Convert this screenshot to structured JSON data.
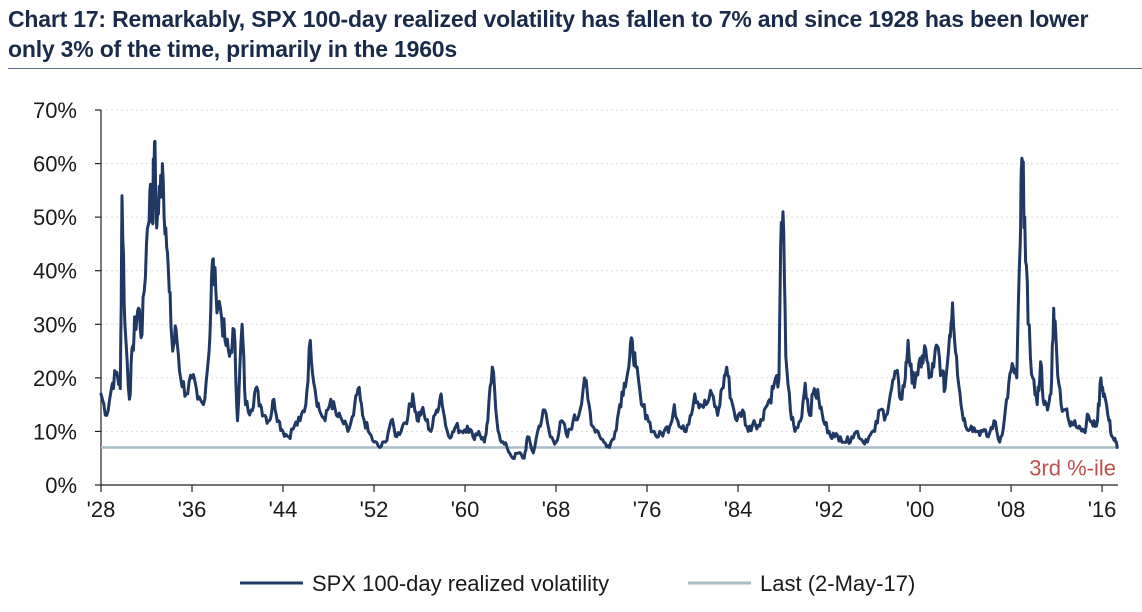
{
  "chart_data": {
    "type": "line",
    "title": "Chart 17: Remarkably, SPX 100-day realized volatility has fallen to 7% and since 1928 has been lower only 3% of the time, primarily in the 1960s",
    "xlabel": "",
    "ylabel": "",
    "xlim": [
      1928,
      2017.4
    ],
    "ylim": [
      0,
      0.7
    ],
    "x_ticks": [
      1928,
      1936,
      1944,
      1952,
      1960,
      1968,
      1976,
      1984,
      1992,
      2000,
      2008,
      2016
    ],
    "x_tick_labels": [
      "'28",
      "'36",
      "'44",
      "'52",
      "'60",
      "'68",
      "'76",
      "'84",
      "'92",
      "'00",
      "'08",
      "'16"
    ],
    "y_ticks": [
      0,
      0.1,
      0.2,
      0.3,
      0.4,
      0.5,
      0.6,
      0.7
    ],
    "y_tick_labels": [
      "0%",
      "10%",
      "20%",
      "30%",
      "40%",
      "50%",
      "60%",
      "70%"
    ],
    "grid": "horizontal dotted",
    "legend_position": "bottom",
    "series": [
      {
        "name": "SPX 100-day realized volatility",
        "color": "#1f3864",
        "points": [
          [
            1928.0,
            0.17
          ],
          [
            1928.5,
            0.13
          ],
          [
            1929.0,
            0.19
          ],
          [
            1929.4,
            0.21
          ],
          [
            1929.7,
            0.18
          ],
          [
            1929.85,
            0.54
          ],
          [
            1930.1,
            0.3
          ],
          [
            1930.5,
            0.16
          ],
          [
            1930.8,
            0.26
          ],
          [
            1931.0,
            0.3
          ],
          [
            1931.3,
            0.33
          ],
          [
            1931.6,
            0.28
          ],
          [
            1932.0,
            0.45
          ],
          [
            1932.3,
            0.55
          ],
          [
            1932.5,
            0.49
          ],
          [
            1932.7,
            0.64
          ],
          [
            1932.9,
            0.48
          ],
          [
            1933.2,
            0.55
          ],
          [
            1933.4,
            0.6
          ],
          [
            1933.7,
            0.48
          ],
          [
            1934.0,
            0.36
          ],
          [
            1934.3,
            0.25
          ],
          [
            1934.6,
            0.29
          ],
          [
            1935.0,
            0.2
          ],
          [
            1935.5,
            0.17
          ],
          [
            1936.0,
            0.2
          ],
          [
            1936.5,
            0.16
          ],
          [
            1937.0,
            0.15
          ],
          [
            1937.5,
            0.25
          ],
          [
            1937.8,
            0.42
          ],
          [
            1938.1,
            0.36
          ],
          [
            1938.5,
            0.33
          ],
          [
            1938.9,
            0.27
          ],
          [
            1939.3,
            0.24
          ],
          [
            1939.7,
            0.29
          ],
          [
            1940.0,
            0.12
          ],
          [
            1940.4,
            0.3
          ],
          [
            1940.7,
            0.15
          ],
          [
            1941.2,
            0.14
          ],
          [
            1941.6,
            0.18
          ],
          [
            1942.0,
            0.15
          ],
          [
            1942.4,
            0.13
          ],
          [
            1942.8,
            0.12
          ],
          [
            1943.2,
            0.16
          ],
          [
            1943.6,
            0.12
          ],
          [
            1944.0,
            0.1
          ],
          [
            1944.5,
            0.09
          ],
          [
            1945.0,
            0.11
          ],
          [
            1945.5,
            0.12
          ],
          [
            1946.0,
            0.15
          ],
          [
            1946.4,
            0.27
          ],
          [
            1946.8,
            0.18
          ],
          [
            1947.2,
            0.14
          ],
          [
            1947.7,
            0.12
          ],
          [
            1948.2,
            0.16
          ],
          [
            1948.7,
            0.13
          ],
          [
            1949.2,
            0.12
          ],
          [
            1949.7,
            0.1
          ],
          [
            1950.2,
            0.13
          ],
          [
            1950.6,
            0.18
          ],
          [
            1951.0,
            0.13
          ],
          [
            1951.5,
            0.1
          ],
          [
            1952.0,
            0.08
          ],
          [
            1952.5,
            0.07
          ],
          [
            1953.0,
            0.08
          ],
          [
            1953.5,
            0.12
          ],
          [
            1954.0,
            0.09
          ],
          [
            1954.5,
            0.11
          ],
          [
            1955.0,
            0.13
          ],
          [
            1955.4,
            0.17
          ],
          [
            1955.8,
            0.12
          ],
          [
            1956.2,
            0.14
          ],
          [
            1956.6,
            0.12
          ],
          [
            1957.0,
            0.1
          ],
          [
            1957.5,
            0.14
          ],
          [
            1957.9,
            0.17
          ],
          [
            1958.3,
            0.11
          ],
          [
            1958.8,
            0.09
          ],
          [
            1959.2,
            0.11
          ],
          [
            1959.7,
            0.1
          ],
          [
            1960.2,
            0.11
          ],
          [
            1960.7,
            0.09
          ],
          [
            1961.2,
            0.1
          ],
          [
            1961.7,
            0.08
          ],
          [
            1962.0,
            0.12
          ],
          [
            1962.4,
            0.22
          ],
          [
            1962.8,
            0.12
          ],
          [
            1963.2,
            0.08
          ],
          [
            1963.7,
            0.07
          ],
          [
            1964.2,
            0.05
          ],
          [
            1964.7,
            0.06
          ],
          [
            1965.2,
            0.05
          ],
          [
            1965.5,
            0.09
          ],
          [
            1966.0,
            0.06
          ],
          [
            1966.5,
            0.11
          ],
          [
            1967.0,
            0.14
          ],
          [
            1967.5,
            0.09
          ],
          [
            1968.0,
            0.08
          ],
          [
            1968.5,
            0.12
          ],
          [
            1969.0,
            0.09
          ],
          [
            1969.5,
            0.12
          ],
          [
            1970.0,
            0.13
          ],
          [
            1970.5,
            0.2
          ],
          [
            1970.8,
            0.16
          ],
          [
            1971.2,
            0.11
          ],
          [
            1971.7,
            0.1
          ],
          [
            1972.2,
            0.08
          ],
          [
            1972.7,
            0.07
          ],
          [
            1973.2,
            0.1
          ],
          [
            1973.6,
            0.15
          ],
          [
            1974.0,
            0.19
          ],
          [
            1974.4,
            0.22
          ],
          [
            1974.7,
            0.27
          ],
          [
            1975.0,
            0.22
          ],
          [
            1975.5,
            0.15
          ],
          [
            1976.0,
            0.13
          ],
          [
            1976.5,
            0.1
          ],
          [
            1977.0,
            0.09
          ],
          [
            1977.5,
            0.1
          ],
          [
            1978.0,
            0.11
          ],
          [
            1978.4,
            0.15
          ],
          [
            1978.8,
            0.11
          ],
          [
            1979.3,
            0.1
          ],
          [
            1979.8,
            0.13
          ],
          [
            1980.2,
            0.17
          ],
          [
            1980.7,
            0.15
          ],
          [
            1981.2,
            0.15
          ],
          [
            1981.7,
            0.17
          ],
          [
            1982.2,
            0.13
          ],
          [
            1982.6,
            0.18
          ],
          [
            1983.0,
            0.22
          ],
          [
            1983.4,
            0.16
          ],
          [
            1983.9,
            0.12
          ],
          [
            1984.4,
            0.14
          ],
          [
            1984.9,
            0.1
          ],
          [
            1985.4,
            0.12
          ],
          [
            1985.9,
            0.11
          ],
          [
            1986.3,
            0.14
          ],
          [
            1986.8,
            0.16
          ],
          [
            1987.2,
            0.19
          ],
          [
            1987.6,
            0.2
          ],
          [
            1987.8,
            0.49
          ],
          [
            1987.95,
            0.51
          ],
          [
            1988.2,
            0.24
          ],
          [
            1988.6,
            0.14
          ],
          [
            1989.0,
            0.1
          ],
          [
            1989.5,
            0.12
          ],
          [
            1989.9,
            0.19
          ],
          [
            1990.3,
            0.13
          ],
          [
            1990.7,
            0.18
          ],
          [
            1991.1,
            0.16
          ],
          [
            1991.5,
            0.12
          ],
          [
            1992.0,
            0.1
          ],
          [
            1992.5,
            0.09
          ],
          [
            1993.0,
            0.09
          ],
          [
            1993.5,
            0.08
          ],
          [
            1994.0,
            0.09
          ],
          [
            1994.5,
            0.1
          ],
          [
            1995.0,
            0.08
          ],
          [
            1995.5,
            0.09
          ],
          [
            1996.0,
            0.1
          ],
          [
            1996.5,
            0.14
          ],
          [
            1997.0,
            0.13
          ],
          [
            1997.5,
            0.18
          ],
          [
            1997.9,
            0.21
          ],
          [
            1998.3,
            0.16
          ],
          [
            1998.7,
            0.2
          ],
          [
            1998.95,
            0.27
          ],
          [
            1999.3,
            0.19
          ],
          [
            1999.7,
            0.21
          ],
          [
            2000.1,
            0.22
          ],
          [
            2000.4,
            0.26
          ],
          [
            2000.8,
            0.2
          ],
          [
            2001.2,
            0.22
          ],
          [
            2001.5,
            0.26
          ],
          [
            2001.9,
            0.21
          ],
          [
            2002.2,
            0.18
          ],
          [
            2002.6,
            0.28
          ],
          [
            2002.85,
            0.34
          ],
          [
            2003.2,
            0.24
          ],
          [
            2003.6,
            0.15
          ],
          [
            2004.0,
            0.11
          ],
          [
            2004.5,
            0.11
          ],
          [
            2005.0,
            0.1
          ],
          [
            2005.5,
            0.1
          ],
          [
            2006.0,
            0.09
          ],
          [
            2006.5,
            0.12
          ],
          [
            2007.0,
            0.08
          ],
          [
            2007.4,
            0.12
          ],
          [
            2007.8,
            0.19
          ],
          [
            2008.2,
            0.22
          ],
          [
            2008.5,
            0.2
          ],
          [
            2008.8,
            0.45
          ],
          [
            2008.95,
            0.61
          ],
          [
            2009.2,
            0.5
          ],
          [
            2009.5,
            0.3
          ],
          [
            2009.9,
            0.2
          ],
          [
            2010.3,
            0.15
          ],
          [
            2010.6,
            0.23
          ],
          [
            2010.9,
            0.15
          ],
          [
            2011.2,
            0.14
          ],
          [
            2011.5,
            0.17
          ],
          [
            2011.75,
            0.33
          ],
          [
            2012.0,
            0.25
          ],
          [
            2012.4,
            0.15
          ],
          [
            2012.8,
            0.14
          ],
          [
            2013.2,
            0.11
          ],
          [
            2013.6,
            0.12
          ],
          [
            2014.0,
            0.11
          ],
          [
            2014.4,
            0.1
          ],
          [
            2014.8,
            0.13
          ],
          [
            2015.2,
            0.11
          ],
          [
            2015.6,
            0.12
          ],
          [
            2015.9,
            0.2
          ],
          [
            2016.2,
            0.17
          ],
          [
            2016.6,
            0.12
          ],
          [
            2016.9,
            0.09
          ],
          [
            2017.2,
            0.08
          ],
          [
            2017.33,
            0.07
          ]
        ]
      },
      {
        "name": "Last (2-May-17)",
        "color": "#a8bcc6",
        "values": [
          0.07
        ]
      }
    ],
    "annotations": [
      {
        "text": "3rd %-ile",
        "color": "#c0504d"
      }
    ]
  }
}
